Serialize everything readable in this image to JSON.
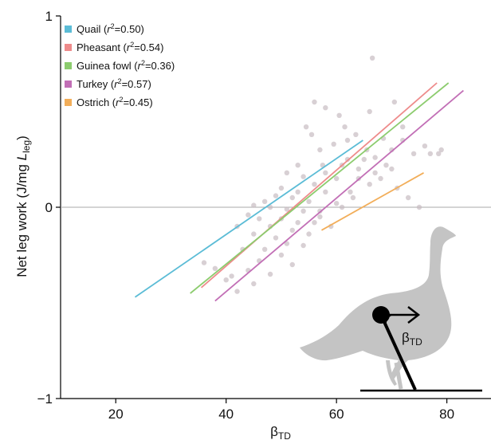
{
  "chart_data": {
    "type": "scatter",
    "title": "",
    "xlabel": "β",
    "xlabel_sub": "TD",
    "ylabel_prefix": "Net leg work (J/mg ",
    "ylabel_var": "L",
    "ylabel_sub": "leg",
    "ylabel_suffix": ")",
    "xlim": [
      10,
      88
    ],
    "ylim": [
      -1,
      1
    ],
    "xticks": [
      20,
      40,
      60,
      80
    ],
    "yticks": [
      {
        "value": -1,
        "label": "−1"
      },
      {
        "value": 0,
        "label": "0"
      },
      {
        "value": 1,
        "label": "1"
      }
    ],
    "zero_line": true,
    "grid": false,
    "legend_position": "top-left",
    "series": [
      {
        "name": "Quail",
        "r2_prefix": "r",
        "r2_suffix": "=0.50",
        "color": "#5bbcd6",
        "line": [
          [
            23.5,
            -0.47
          ],
          [
            64.8,
            0.35
          ]
        ]
      },
      {
        "name": "Pheasant",
        "r2_prefix": "r",
        "r2_suffix": "=0.54",
        "color": "#ee8b8b",
        "line": [
          [
            35.5,
            -0.42
          ],
          [
            78.2,
            0.65
          ]
        ]
      },
      {
        "name": "Guinea fowl",
        "r2_prefix": "r",
        "r2_suffix": "=0.36",
        "color": "#8ccc6e",
        "line": [
          [
            33.5,
            -0.45
          ],
          [
            80.3,
            0.65
          ]
        ]
      },
      {
        "name": "Turkey",
        "r2_prefix": "r",
        "r2_suffix": "=0.57",
        "color": "#c26fb6",
        "line": [
          [
            38.0,
            -0.49
          ],
          [
            83.0,
            0.61
          ]
        ]
      },
      {
        "name": "Ostrich",
        "r2_prefix": "r",
        "r2_suffix": "=0.45",
        "color": "#f2ae5a",
        "line": [
          [
            57.3,
            -0.12
          ],
          [
            75.8,
            0.18
          ]
        ]
      }
    ],
    "points_color": "#c8bcc2",
    "points": [
      [
        66.5,
        0.78
      ],
      [
        56,
        0.55
      ],
      [
        70.5,
        0.55
      ],
      [
        58,
        0.52
      ],
      [
        66,
        0.5
      ],
      [
        60.5,
        0.48
      ],
      [
        54.5,
        0.42
      ],
      [
        61.5,
        0.42
      ],
      [
        55.5,
        0.38
      ],
      [
        63.5,
        0.38
      ],
      [
        68.5,
        0.36
      ],
      [
        72,
        0.35
      ],
      [
        59.5,
        0.33
      ],
      [
        65.5,
        0.3
      ],
      [
        74,
        0.28
      ],
      [
        77,
        0.28
      ],
      [
        78.5,
        0.28
      ],
      [
        67,
        0.26
      ],
      [
        62,
        0.25
      ],
      [
        53,
        0.22
      ],
      [
        57.5,
        0.22
      ],
      [
        70,
        0.2
      ],
      [
        64,
        0.2
      ],
      [
        51,
        0.18
      ],
      [
        54,
        0.16
      ],
      [
        60,
        0.15
      ],
      [
        66,
        0.12
      ],
      [
        56,
        0.12
      ],
      [
        50,
        0.1
      ],
      [
        53,
        0.08
      ],
      [
        58,
        0.08
      ],
      [
        62.5,
        0.08
      ],
      [
        49,
        0.06
      ],
      [
        52,
        0.05
      ],
      [
        55,
        0.03
      ],
      [
        47,
        0.03
      ],
      [
        60,
        0.02
      ],
      [
        45,
        0.01
      ],
      [
        48,
        0.0
      ],
      [
        51,
        -0.01
      ],
      [
        54,
        -0.02
      ],
      [
        57,
        -0.02
      ],
      [
        44,
        -0.04
      ],
      [
        46,
        -0.06
      ],
      [
        50,
        -0.06
      ],
      [
        53,
        -0.08
      ],
      [
        56,
        -0.08
      ],
      [
        48,
        -0.1
      ],
      [
        52,
        -0.12
      ],
      [
        55,
        -0.14
      ],
      [
        42,
        -0.1
      ],
      [
        45,
        -0.14
      ],
      [
        49,
        -0.16
      ],
      [
        51,
        -0.19
      ],
      [
        54,
        -0.2
      ],
      [
        47,
        -0.22
      ],
      [
        43,
        -0.22
      ],
      [
        50,
        -0.25
      ],
      [
        46,
        -0.28
      ],
      [
        44,
        -0.33
      ],
      [
        48,
        -0.35
      ],
      [
        41,
        -0.36
      ],
      [
        45,
        -0.4
      ],
      [
        42,
        -0.44
      ],
      [
        36,
        -0.29
      ],
      [
        38,
        -0.32
      ],
      [
        40,
        -0.38
      ],
      [
        52,
        -0.3
      ],
      [
        57,
        -0.05
      ],
      [
        59,
        -0.1
      ],
      [
        61,
        0.0
      ],
      [
        63,
        0.05
      ],
      [
        64,
        0.15
      ],
      [
        67,
        0.18
      ],
      [
        69,
        0.22
      ],
      [
        71,
        0.1
      ],
      [
        73,
        0.05
      ],
      [
        75,
        0.0
      ],
      [
        79,
        0.3
      ],
      [
        76,
        0.32
      ],
      [
        72,
        0.42
      ],
      [
        62,
        0.35
      ],
      [
        57,
        0.3
      ],
      [
        58,
        0.18
      ],
      [
        61,
        0.22
      ],
      [
        65,
        0.25
      ],
      [
        68,
        0.15
      ],
      [
        70,
        0.3
      ]
    ]
  }
}
